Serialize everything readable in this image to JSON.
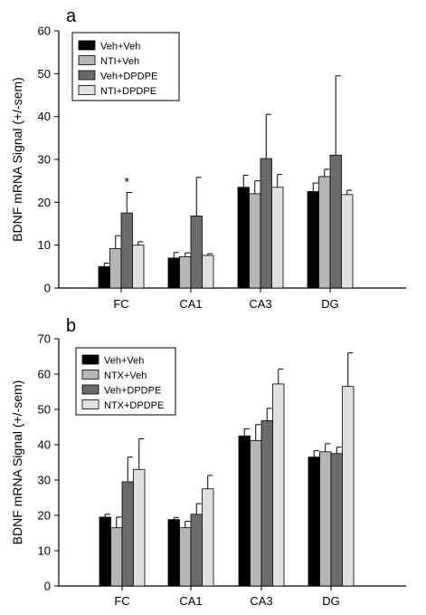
{
  "chart_data": [
    {
      "type": "bar",
      "panel_label": "a",
      "title": "",
      "xlabel": "",
      "ylabel": "BDNF mRNA Signal (+/-sem)",
      "ylim": [
        0,
        60
      ],
      "yticks": [
        0,
        10,
        20,
        30,
        40,
        50,
        60
      ],
      "categories": [
        "FC",
        "CA1",
        "CA3",
        "DG"
      ],
      "series": [
        {
          "name": "Veh+Veh",
          "color": "#000000",
          "values": [
            5.0,
            7.0,
            23.5,
            22.5
          ],
          "errors": [
            0.8,
            1.3,
            2.8,
            2.0
          ]
        },
        {
          "name": "NTI+Veh",
          "color": "#b5b5b5",
          "values": [
            9.2,
            7.3,
            22.0,
            26.0
          ],
          "errors": [
            3.0,
            0.9,
            3.0,
            1.7
          ]
        },
        {
          "name": "Veh+DPDPE",
          "color": "#6b6b6b",
          "values": [
            17.5,
            16.8,
            30.2,
            31.0
          ],
          "errors": [
            4.8,
            9.0,
            10.3,
            18.5
          ]
        },
        {
          "name": "NTI+DPDPE",
          "color": "#e0e0e0",
          "values": [
            10.0,
            7.6,
            23.5,
            21.8
          ],
          "errors": [
            0.8,
            0.4,
            3.0,
            1.0
          ]
        }
      ],
      "annotations": [
        {
          "text": "*",
          "category": "FC",
          "series": 2
        }
      ],
      "legend_position": "top-left"
    },
    {
      "type": "bar",
      "panel_label": "b",
      "title": "",
      "xlabel": "",
      "ylabel": "BDNF mRNA Signal (+/-sem)",
      "ylim": [
        0,
        70
      ],
      "yticks": [
        0,
        10,
        20,
        30,
        40,
        50,
        60,
        70
      ],
      "categories": [
        "FC",
        "CA1",
        "CA3",
        "DG"
      ],
      "series": [
        {
          "name": "Veh+Veh",
          "color": "#000000",
          "values": [
            19.5,
            18.8,
            42.5,
            36.5
          ],
          "errors": [
            0.8,
            0.6,
            2.0,
            1.8
          ]
        },
        {
          "name": "NTX+Veh",
          "color": "#b5b5b5",
          "values": [
            16.5,
            16.5,
            41.2,
            38.0
          ],
          "errors": [
            3.0,
            1.8,
            4.5,
            2.3
          ]
        },
        {
          "name": "Veh+DPDPE",
          "color": "#6b6b6b",
          "values": [
            29.5,
            20.3,
            46.8,
            37.5
          ],
          "errors": [
            7.0,
            3.0,
            3.5,
            1.8
          ]
        },
        {
          "name": "NTX+DPDPE",
          "color": "#e0e0e0",
          "values": [
            33.0,
            27.5,
            57.2,
            56.5
          ],
          "errors": [
            8.7,
            3.8,
            4.2,
            9.5
          ]
        }
      ],
      "annotations": [],
      "legend_position": "top-left"
    }
  ]
}
